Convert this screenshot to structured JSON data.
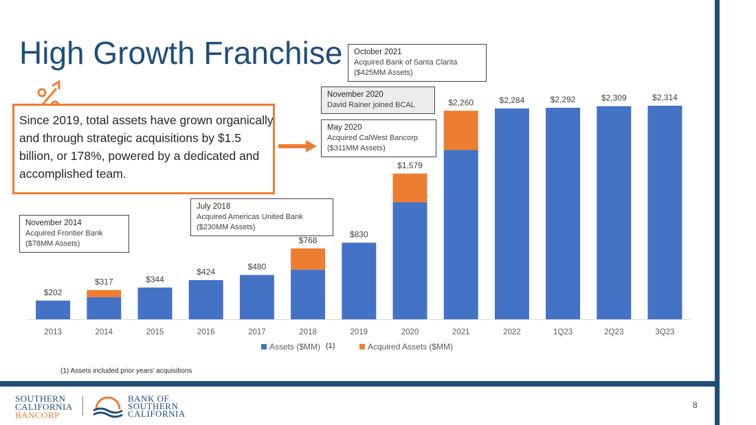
{
  "slide": {
    "title": "High Growth Franchise",
    "page_number": "8",
    "footnote": "(1)  Assets included prior years’ acquisitions",
    "highlight_text": "Since 2019, total assets have grown organically and through strategic acquisitions by $1.5 billion, or 178%, powered by a dedicated and accomplished team."
  },
  "callouts": [
    {
      "heading": "November 2014",
      "line1": "Acquired Frontier Bank",
      "line2": "($78MM Assets)"
    },
    {
      "heading": "July 2018",
      "line1": "Acquired Americas United Bank",
      "line2": "($230MM Assets)"
    },
    {
      "heading": "May 2020",
      "line1": "Acquired CalWest Bancorp",
      "line2": "($311MM Assets)"
    },
    {
      "heading": "November 2020",
      "line1": "David Rainer joined BCAL",
      "line2": ""
    },
    {
      "heading": "October 2021",
      "line1": "Acquired Bank of Santa Clarita",
      "line2": "($425MM Assets)"
    }
  ],
  "logos": {
    "left": [
      "SOUTHERN",
      "CALIFORNIA",
      "BANCORP"
    ],
    "right": [
      "BANK OF",
      "SOUTHERN",
      "CALIFORNIA"
    ]
  },
  "chart_data": {
    "type": "bar",
    "stacked": true,
    "categories": [
      "2013",
      "2014",
      "2015",
      "2016",
      "2017",
      "2018",
      "2019",
      "2020",
      "2021",
      "2022",
      "1Q23",
      "2Q23",
      "3Q23"
    ],
    "series": [
      {
        "name": "Assets ($MM)",
        "color": "#4472c4",
        "values": [
          202,
          239,
          344,
          424,
          480,
          538,
          830,
          1268,
          1835,
          2284,
          2292,
          2309,
          2314
        ]
      },
      {
        "name": "Acquired Assets ($MM)",
        "color": "#ed7d31",
        "values": [
          0,
          78,
          0,
          0,
          0,
          230,
          0,
          311,
          425,
          0,
          0,
          0,
          0
        ]
      }
    ],
    "data_labels": [
      "$202",
      "$317",
      "$344",
      "$424",
      "$480",
      "$768",
      "$830",
      "$1,579",
      "$2,260",
      "$2,284",
      "$2,292",
      "$2,309",
      "$2,314"
    ],
    "legend_marker": "(1)",
    "ylim": [
      0,
      2314
    ],
    "grid": false,
    "legend": "bottom-center"
  }
}
